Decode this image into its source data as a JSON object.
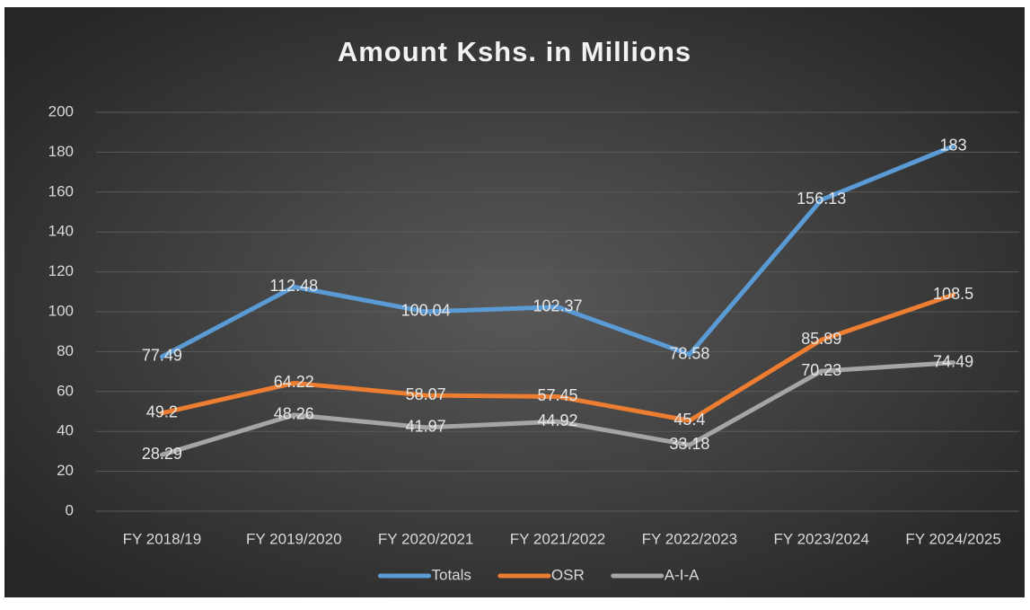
{
  "chart_data": {
    "type": "line",
    "title": "Amount Kshs. in Millions",
    "categories": [
      "FY 2018/19",
      "FY 2019/2020",
      "FY 2020/2021",
      "FY 2021/2022",
      "FY 2022/2023",
      "FY 2023/2024",
      "FY 2024/2025"
    ],
    "series": [
      {
        "name": "Totals",
        "color": "#5b9bd5",
        "values": [
          77.49,
          112.48,
          100.04,
          102.37,
          78.58,
          156.13,
          183
        ]
      },
      {
        "name": "OSR",
        "color": "#ed7d31",
        "values": [
          49.2,
          64.22,
          58.07,
          57.45,
          45.4,
          85.89,
          108.5
        ]
      },
      {
        "name": "A-I-A",
        "color": "#a5a5a5",
        "values": [
          28.29,
          48.26,
          41.97,
          44.92,
          33.18,
          70.23,
          74.49
        ]
      }
    ],
    "ylim": [
      0,
      200
    ],
    "yticks": [
      0,
      20,
      40,
      60,
      80,
      100,
      120,
      140,
      160,
      180,
      200
    ],
    "grid": true,
    "legend": "bottom"
  }
}
